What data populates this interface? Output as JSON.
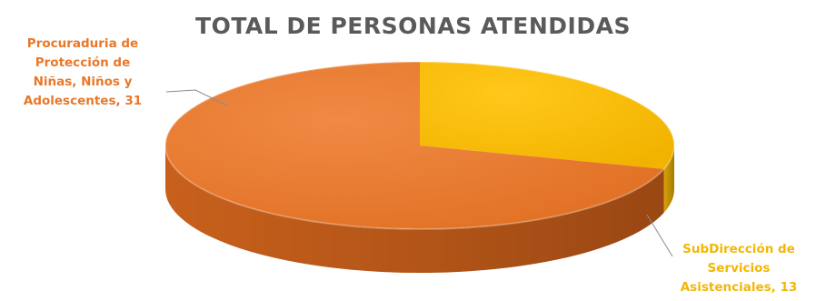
{
  "chart_data": {
    "type": "pie",
    "title": "TOTAL DE PERSONAS ATENDIDAS",
    "three_d": true,
    "slices": [
      {
        "label_lines": [
          "Procuraduria de",
          "Protección de",
          "Niñas, Niños y",
          "Adolescentes, 31"
        ],
        "category": "Procuraduria de Protección de Niñas, Niños y Adolescentes",
        "value": 31,
        "color": "#ED7D31"
      },
      {
        "label_lines": [
          "SubDirección de",
          "Servicios",
          "Asistenciales, 13"
        ],
        "category": "SubDirección de Servicios Asistenciales",
        "value": 13,
        "color": "#FFC000"
      }
    ]
  }
}
